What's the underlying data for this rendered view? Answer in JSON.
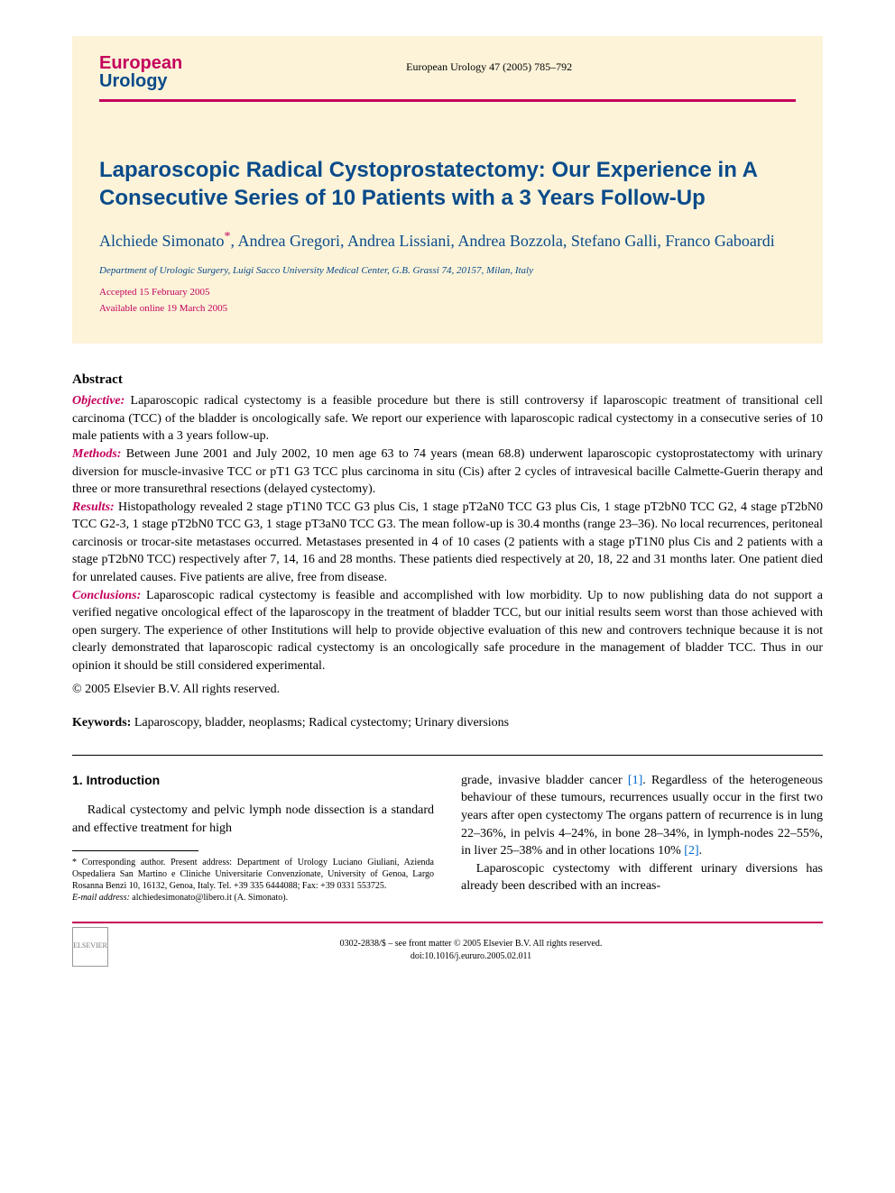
{
  "journal": {
    "logo_top": "European",
    "logo_bottom": "Urology",
    "citation": "European Urology 47 (2005) 785–792",
    "logo_top_color": "#c4005c",
    "logo_bottom_color": "#0a4b8a"
  },
  "title": "Laparoscopic Radical Cystoprostatectomy: Our Experience in A Consecutive Series of 10 Patients with a 3 Years Follow-Up",
  "authors": "Alchiede Simonato*, Andrea Gregori, Andrea Lissiani, Andrea Bozzola, Stefano Galli, Franco Gaboardi",
  "affiliation": "Department of Urologic Surgery, Luigi Sacco University Medical Center, G.B. Grassi 74, 20157, Milan, Italy",
  "accepted": "Accepted 15 February 2005",
  "available": "Available online 19 March 2005",
  "abstract": {
    "heading": "Abstract",
    "objective_label": "Objective:",
    "objective": " Laparoscopic radical cystectomy is a feasible procedure but there is still controversy if laparoscopic treatment of transitional cell carcinoma (TCC) of the bladder is oncologically safe. We report our experience with laparoscopic radical cystectomy in a consecutive series of 10 male patients with a 3 years follow-up.",
    "methods_label": "Methods:",
    "methods": " Between June 2001 and July 2002, 10 men age 63 to 74 years (mean 68.8) underwent laparoscopic cystoprostatectomy with urinary diversion for muscle-invasive TCC or pT1 G3 TCC plus carcinoma in situ (Cis) after 2 cycles of intravesical bacille Calmette-Guerin therapy and three or more transurethral resections (delayed cystectomy).",
    "results_label": "Results:",
    "results": " Histopathology revealed 2 stage pT1N0 TCC G3 plus Cis, 1 stage pT2aN0 TCC G3 plus Cis, 1 stage pT2bN0 TCC G2, 4 stage pT2bN0 TCC G2-3, 1 stage pT2bN0 TCC G3, 1 stage pT3aN0 TCC G3. The mean follow-up is 30.4 months (range 23–36). No local recurrences, peritoneal carcinosis or trocar-site metastases occurred. Metastases presented in 4 of 10 cases (2 patients with a stage pT1N0 plus Cis and 2 patients with a stage pT2bN0 TCC) respectively after 7, 14, 16 and 28 months. These patients died respectively at 20, 18, 22 and 31 months later. One patient died for unrelated causes. Five patients are alive, free from disease.",
    "conclusions_label": "Conclusions:",
    "conclusions": " Laparoscopic radical cystectomy is feasible and accomplished with low morbidity. Up to now publishing data do not support a verified negative oncological effect of the laparoscopy in the treatment of bladder TCC, but our initial results seem worst than those achieved with open surgery. The experience of other Institutions will help to provide objective evaluation of this new and controvers technique because it is not clearly demonstrated that laparoscopic radical cystectomy is an oncologically safe procedure in the management of bladder TCC. Thus in our opinion it should be still considered experimental.",
    "copyright": "© 2005 Elsevier B.V. All rights reserved."
  },
  "keywords_label": "Keywords:",
  "keywords": "  Laparoscopy, bladder, neoplasms; Radical cystectomy; Urinary diversions",
  "section1": {
    "heading": "1.  Introduction",
    "left_para": "Radical cystectomy and pelvic lymph node dissection is a standard and effective treatment for high",
    "right_para1_a": "grade, invasive bladder cancer ",
    "right_ref1": "[1]",
    "right_para1_b": ". Regardless of the heterogeneous behaviour of these tumours, recurrences usually occur in the first two years after open cystectomy The organs pattern of recurrence is in lung 22–36%, in pelvis 4–24%, in bone 28–34%, in lymph-nodes 22–55%, in liver 25–38% and in other locations 10% ",
    "right_ref2": "[2]",
    "right_para1_c": ".",
    "right_para2": "Laparoscopic cystectomy with different urinary diversions has already been described with an increas-"
  },
  "footnote": {
    "corresponding": "* Corresponding author. Present address: Department of Urology Luciano Giuliani, Azienda Ospedaliera San Martino e Cliniche Universitarie Convenzionate, University of Genoa, Largo Rosanna Benzi 10, 16132, Genoa, Italy. Tel. +39 335 6444088; Fax: +39 0331 553725.",
    "email_label": "E-mail address:",
    "email": " alchiedesimonato@libero.it (A. Simonato)."
  },
  "footer": {
    "line1": "0302-2838/$ – see front matter © 2005 Elsevier B.V. All rights reserved.",
    "line2": "doi:10.1016/j.eururo.2005.02.011",
    "publisher": "ELSEVIER"
  },
  "colors": {
    "header_bg": "#fcf3d9",
    "brand_pink": "#c4005c",
    "brand_blue": "#0a4b8a",
    "link_blue": "#0066cc"
  }
}
